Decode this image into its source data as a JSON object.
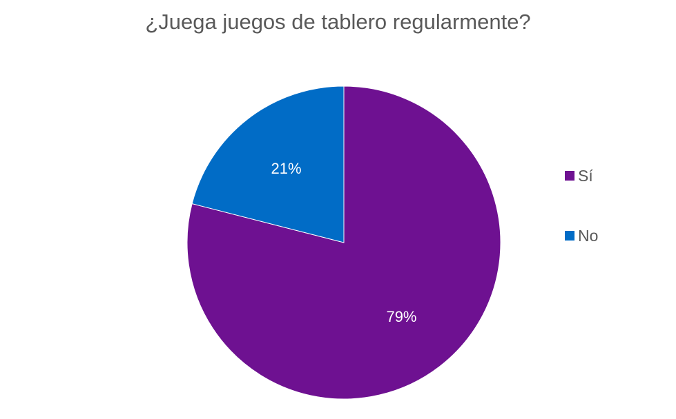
{
  "chart_data": {
    "type": "pie",
    "title": "¿Juega juegos de tablero regularmente?",
    "slices": [
      {
        "label": "Sí",
        "value": 79,
        "display": "79%",
        "color": "#6E1191"
      },
      {
        "label": "No",
        "value": 21,
        "display": "21%",
        "color": "#016CC6"
      }
    ],
    "start_angle_deg": 0,
    "direction": "clockwise",
    "legend": {
      "position": "right",
      "entries": [
        "Sí",
        "No"
      ]
    }
  }
}
